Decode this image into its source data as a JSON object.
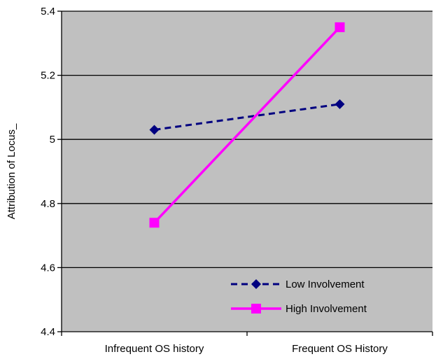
{
  "chart_data": {
    "type": "line",
    "title": "",
    "xlabel": "",
    "ylabel": "Attribution of Locus_",
    "categories": [
      "Infrequent OS history",
      "Frequent OS History"
    ],
    "ylim": [
      4.4,
      5.4
    ],
    "yticks": [
      "4.4",
      "4.6",
      "4.8",
      "5",
      "5.2",
      "5.4"
    ],
    "grid": "horizontal",
    "plot_background": "#c0c0c0",
    "legend_position": "bottom-right",
    "series": [
      {
        "name": "Low Involvement",
        "values": [
          5.03,
          5.11
        ],
        "color": "#000080",
        "line_style": "dashed",
        "marker": "diamond"
      },
      {
        "name": "High Involvement",
        "values": [
          4.74,
          5.35
        ],
        "color": "#ff00ff",
        "line_style": "solid",
        "marker": "square"
      }
    ]
  }
}
